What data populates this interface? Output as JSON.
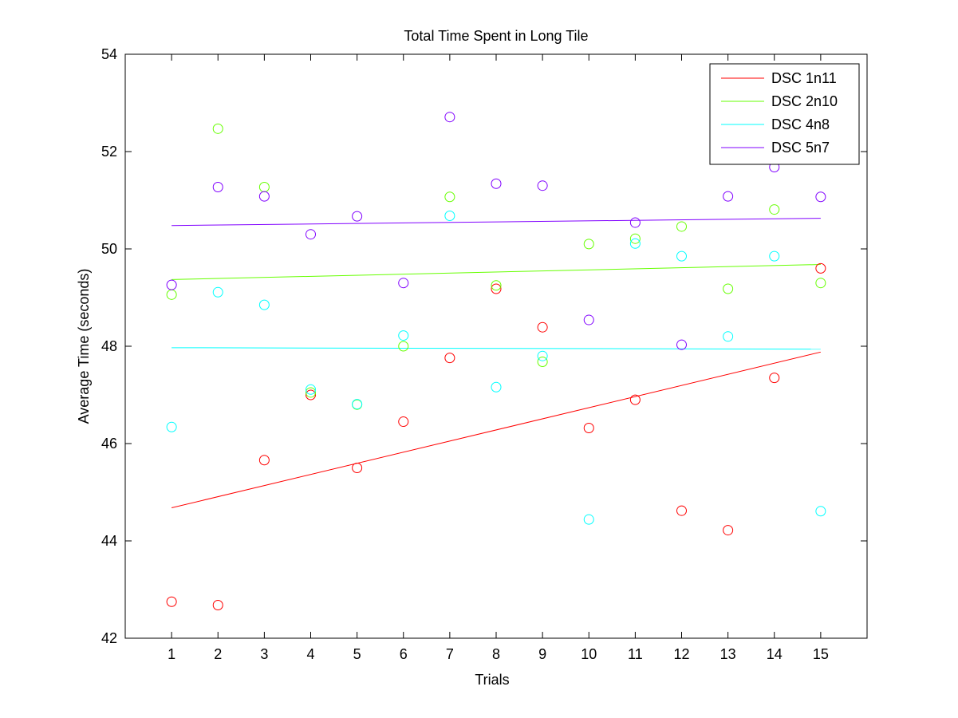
{
  "chart_data": {
    "type": "scatter",
    "title": "Total Time Spent in Long Tile",
    "xlabel": "Trials",
    "ylabel": "Average Time (seconds)",
    "xlim": [
      0,
      16
    ],
    "ylim": [
      42,
      54
    ],
    "xticks": [
      1,
      2,
      3,
      4,
      5,
      6,
      7,
      8,
      9,
      10,
      11,
      12,
      13,
      14,
      15
    ],
    "yticks": [
      42,
      44,
      46,
      48,
      50,
      52,
      54
    ],
    "grid": false,
    "legend_position": "top-right",
    "x": [
      1,
      2,
      3,
      4,
      5,
      6,
      7,
      8,
      9,
      10,
      11,
      12,
      13,
      14,
      15
    ],
    "series": [
      {
        "name": "DSC 1n11",
        "color": "#ff0000",
        "values": [
          42.75,
          42.68,
          45.66,
          47.0,
          45.5,
          46.45,
          47.76,
          49.18,
          48.39,
          46.32,
          46.9,
          44.62,
          44.22,
          47.35,
          49.6
        ],
        "fit": [
          44.68,
          47.88
        ]
      },
      {
        "name": "DSC 2n10",
        "color": "#66ff00",
        "values": [
          49.06,
          52.47,
          51.27,
          47.05,
          46.8,
          48.0,
          51.07,
          49.25,
          47.68,
          50.1,
          50.21,
          50.46,
          49.18,
          50.81,
          49.3
        ],
        "fit": [
          49.37,
          49.68
        ]
      },
      {
        "name": "DSC 4n8",
        "color": "#00ffff",
        "values": [
          46.34,
          49.11,
          48.85,
          47.11,
          46.81,
          48.22,
          50.68,
          47.16,
          47.8,
          44.44,
          50.11,
          49.85,
          48.2,
          49.85,
          44.61
        ],
        "fit": [
          47.97,
          47.94
        ]
      },
      {
        "name": "DSC 5n7",
        "color": "#8000ff",
        "values": [
          49.26,
          51.27,
          51.08,
          50.3,
          50.67,
          49.3,
          52.71,
          51.34,
          51.3,
          48.54,
          50.54,
          48.03,
          51.08,
          51.68,
          51.07
        ],
        "fit": [
          50.48,
          50.63
        ]
      }
    ]
  }
}
